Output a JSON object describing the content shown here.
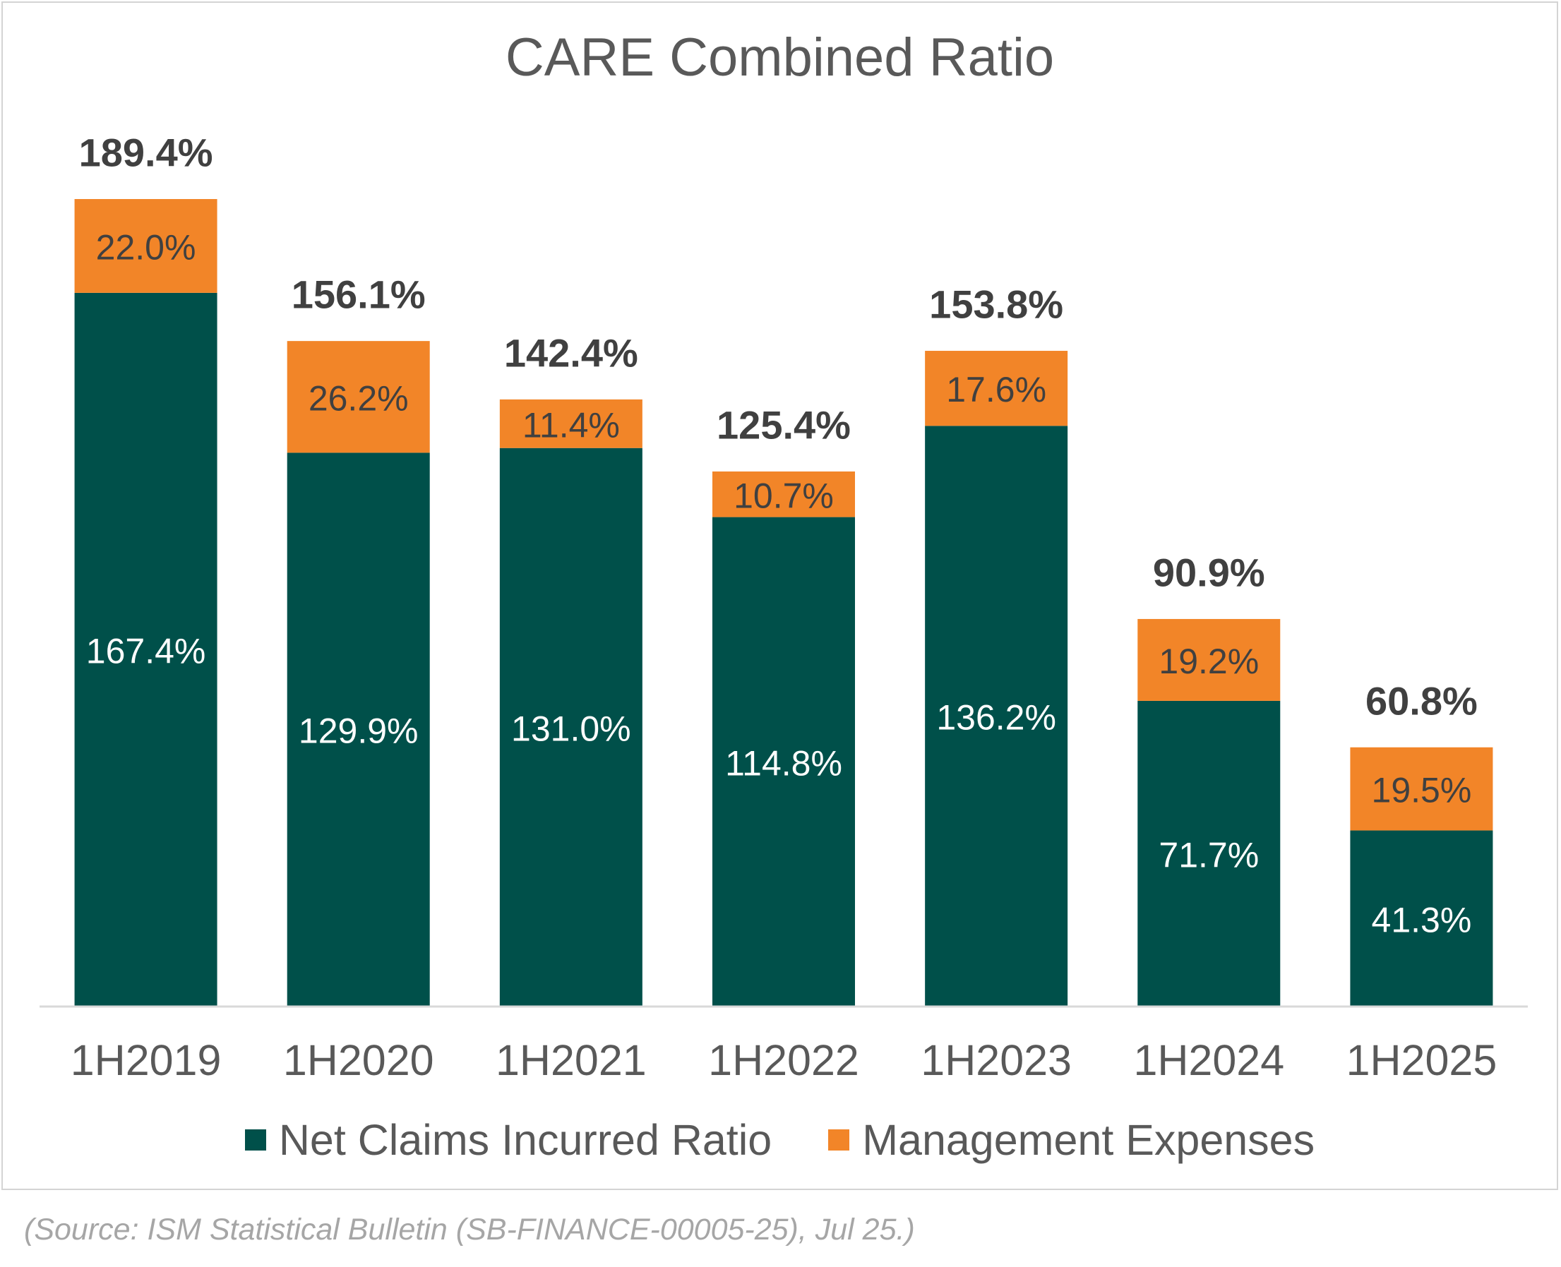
{
  "chart_data": {
    "type": "bar",
    "stacked": true,
    "title": "CARE Combined Ratio",
    "xlabel": "",
    "ylabel": "",
    "ylim": [
      0,
      189.4
    ],
    "grid": false,
    "legend_position": "bottom",
    "categories": [
      "1H2019",
      "1H2020",
      "1H2021",
      "1H2022",
      "1H2023",
      "1H2024",
      "1H2025"
    ],
    "series": [
      {
        "name": "Net Claims Incurred Ratio",
        "color": "#00504a",
        "values": [
          167.4,
          129.9,
          131.0,
          114.8,
          136.2,
          71.7,
          41.3
        ],
        "labels": [
          "167.4%",
          "129.9%",
          "131.0%",
          "114.8%",
          "136.2%",
          "71.7%",
          "41.3%"
        ]
      },
      {
        "name": "Management Expenses",
        "color": "#f28528",
        "values": [
          22.0,
          26.2,
          11.4,
          10.7,
          17.6,
          19.2,
          19.5
        ],
        "labels": [
          "22.0%",
          "26.2%",
          "11.4%",
          "10.7%",
          "17.6%",
          "19.2%",
          "19.5%"
        ]
      }
    ],
    "totals": [
      189.4,
      156.1,
      142.4,
      125.4,
      153.8,
      90.9,
      60.8
    ],
    "total_labels": [
      "189.4%",
      "156.1%",
      "142.4%",
      "125.4%",
      "153.8%",
      "90.9%",
      "60.8%"
    ]
  },
  "source_note": "(Source: ISM Statistical Bulletin (SB-FINANCE-00005-25), Jul 25.)",
  "colors": {
    "axis": "#d9d9d9",
    "text": "#595959",
    "total_text": "#404040",
    "bar_text_on_orange": "#404040",
    "bar_text_on_green": "#ffffff"
  }
}
